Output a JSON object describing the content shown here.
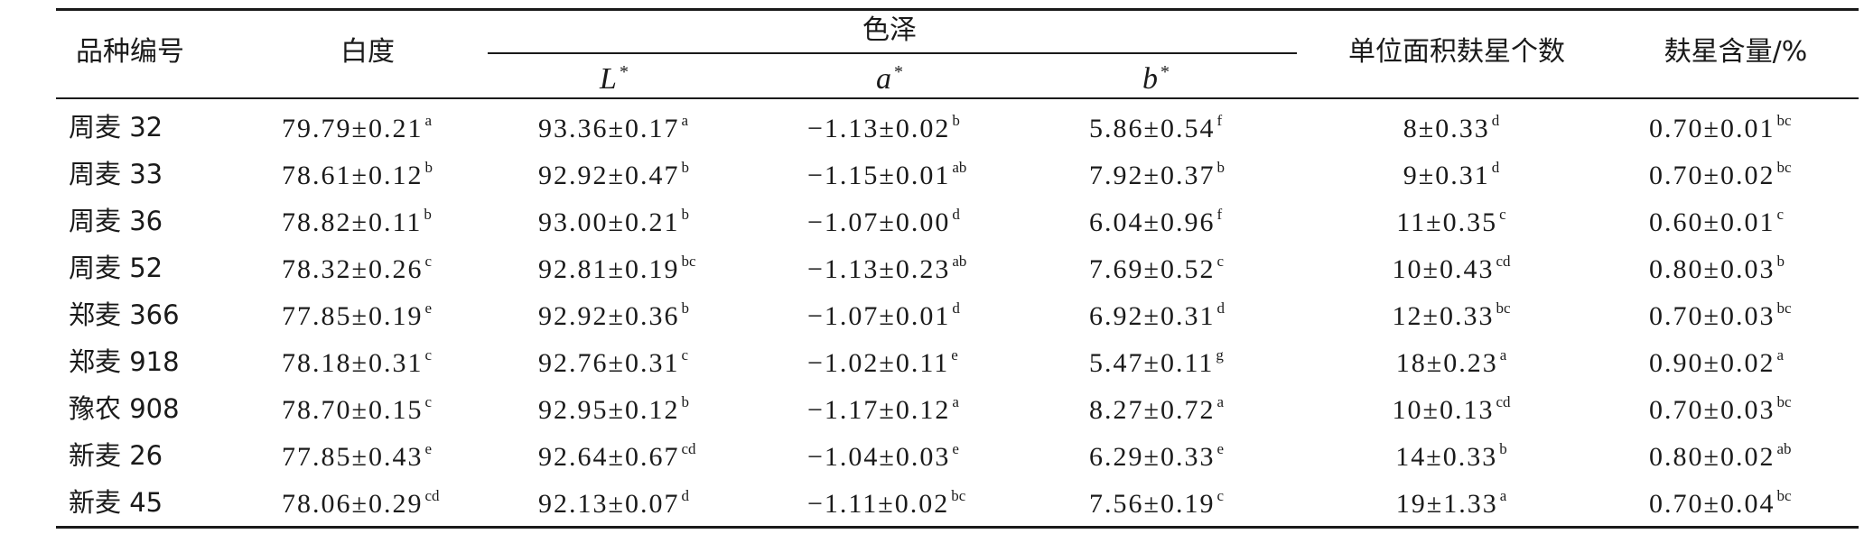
{
  "table": {
    "headers": {
      "variety": "品种编号",
      "whiteness": "白度",
      "color": "色泽",
      "L": "L",
      "a": "a",
      "b": "b",
      "star": "*",
      "bran_count": "单位面积麸星个数",
      "bran_content": "麸星含量/%"
    },
    "rows": [
      {
        "name": "周麦 32",
        "white": "79.79±0.21",
        "white_sup": "a",
        "L": "93.36±0.17",
        "L_sup": "a",
        "a": "−1.13±0.02",
        "a_sup": "b",
        "b": "5.86±0.54",
        "b_sup": "f",
        "count": "8±0.33",
        "count_sup": "d",
        "content": "0.70±0.01",
        "content_sup": "bc"
      },
      {
        "name": "周麦 33",
        "white": "78.61±0.12",
        "white_sup": "b",
        "L": "92.92±0.47",
        "L_sup": "b",
        "a": "−1.15±0.01",
        "a_sup": "ab",
        "b": "7.92±0.37",
        "b_sup": "b",
        "count": "9±0.31",
        "count_sup": "d",
        "content": "0.70±0.02",
        "content_sup": "bc"
      },
      {
        "name": "周麦 36",
        "white": "78.82±0.11",
        "white_sup": "b",
        "L": "93.00±0.21",
        "L_sup": "b",
        "a": "−1.07±0.00",
        "a_sup": "d",
        "b": "6.04±0.96",
        "b_sup": "f",
        "count": "11±0.35",
        "count_sup": "c",
        "content": "0.60±0.01",
        "content_sup": "c"
      },
      {
        "name": "周麦 52",
        "white": "78.32±0.26",
        "white_sup": "c",
        "L": "92.81±0.19",
        "L_sup": "bc",
        "a": "−1.13±0.23",
        "a_sup": "ab",
        "b": "7.69±0.52",
        "b_sup": "c",
        "count": "10±0.43",
        "count_sup": "cd",
        "content": "0.80±0.03",
        "content_sup": "b"
      },
      {
        "name": "郑麦 366",
        "white": "77.85±0.19",
        "white_sup": "e",
        "L": "92.92±0.36",
        "L_sup": "b",
        "a": "−1.07±0.01",
        "a_sup": "d",
        "b": "6.92±0.31",
        "b_sup": "d",
        "count": "12±0.33",
        "count_sup": "bc",
        "content": "0.70±0.03",
        "content_sup": "bc"
      },
      {
        "name": "郑麦 918",
        "white": "78.18±0.31",
        "white_sup": "c",
        "L": "92.76±0.31",
        "L_sup": "c",
        "a": "−1.02±0.11",
        "a_sup": "e",
        "b": "5.47±0.11",
        "b_sup": "g",
        "count": "18±0.23",
        "count_sup": "a",
        "content": "0.90±0.02",
        "content_sup": "a"
      },
      {
        "name": "豫农 908",
        "white": "78.70±0.15",
        "white_sup": "c",
        "L": "92.95±0.12",
        "L_sup": "b",
        "a": "−1.17±0.12",
        "a_sup": "a",
        "b": "8.27±0.72",
        "b_sup": "a",
        "count": "10±0.13",
        "count_sup": "cd",
        "content": "0.70±0.03",
        "content_sup": "bc"
      },
      {
        "name": "新麦 26",
        "white": "77.85±0.43",
        "white_sup": "e",
        "L": "92.64±0.67",
        "L_sup": "cd",
        "a": "−1.04±0.03",
        "a_sup": "e",
        "b": "6.29±0.33",
        "b_sup": "e",
        "count": "14±0.33",
        "count_sup": "b",
        "content": "0.80±0.02",
        "content_sup": "ab"
      },
      {
        "name": "新麦 45",
        "white": "78.06±0.29",
        "white_sup": "cd",
        "L": "92.13±0.07",
        "L_sup": "d",
        "a": "−1.11±0.02",
        "a_sup": "bc",
        "b": "7.56±0.19",
        "b_sup": "c",
        "count": "19±1.33",
        "count_sup": "a",
        "content": "0.70±0.04",
        "content_sup": "bc"
      }
    ]
  }
}
